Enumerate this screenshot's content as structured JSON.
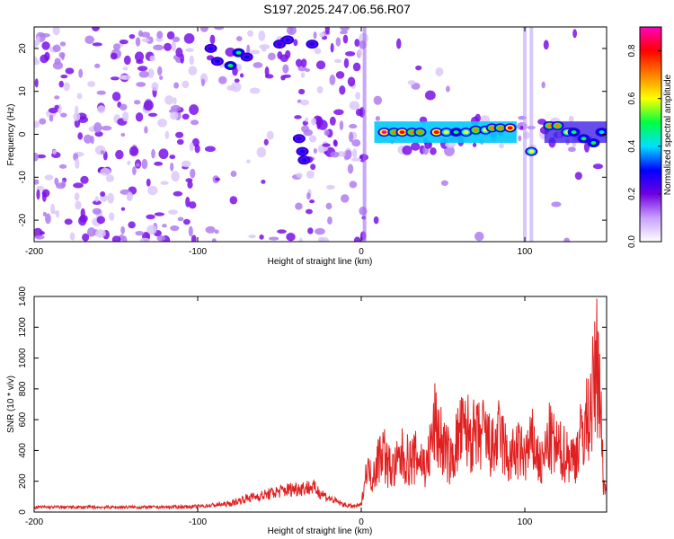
{
  "figure": {
    "title": "S197.2025.247.06.56.R07"
  },
  "chart_data": [
    {
      "type": "heatmap",
      "xlabel": "Height of straight line (km)",
      "ylabel": "Frequency (Hz)",
      "xlim": [
        -200,
        150
      ],
      "ylim": [
        -25,
        25
      ],
      "xticks": [
        -200,
        -100,
        0,
        100
      ],
      "yticks": [
        -20,
        -10,
        0,
        10,
        20
      ],
      "colorbar": {
        "label": "Normalized spectral amplitude",
        "range": [
          0.0,
          0.9
        ],
        "ticks": [
          "0.0",
          "0.2",
          "0.4",
          "0.6",
          "0.8"
        ],
        "colors": [
          "#ffffff",
          "#c8a0ff",
          "#7000e0",
          "#0000ff",
          "#00e0ff",
          "#00ff40",
          "#ffff00",
          "#ff8000",
          "#ff0000",
          "#ff00c0"
        ]
      },
      "features": [
        {
          "x": -75,
          "y": 19,
          "v": 0.45
        },
        {
          "x": -80,
          "y": 16,
          "v": 0.5
        },
        {
          "x": -92,
          "y": 20,
          "v": 0.35
        },
        {
          "x": -88,
          "y": 17,
          "v": 0.3
        },
        {
          "x": -50,
          "y": 21,
          "v": 0.35
        },
        {
          "x": -45,
          "y": 22,
          "v": 0.3
        },
        {
          "x": -30,
          "y": 21,
          "v": 0.3
        },
        {
          "x": -70,
          "y": 18,
          "v": 0.3
        },
        {
          "x": -38,
          "y": -1,
          "v": 0.3
        },
        {
          "x": -36,
          "y": -4,
          "v": 0.3
        },
        {
          "x": -35,
          "y": -6,
          "v": 0.35
        },
        {
          "x": 14,
          "y": 0.5,
          "v": 0.85
        },
        {
          "x": 20,
          "y": 0.5,
          "v": 0.7
        },
        {
          "x": 25,
          "y": 0.5,
          "v": 0.8
        },
        {
          "x": 31,
          "y": 0.5,
          "v": 0.75
        },
        {
          "x": 36,
          "y": 0.5,
          "v": 0.75
        },
        {
          "x": 46,
          "y": 0.5,
          "v": 0.8
        },
        {
          "x": 52,
          "y": 0.5,
          "v": 0.6
        },
        {
          "x": 58,
          "y": 0.5,
          "v": 0.5
        },
        {
          "x": 64,
          "y": 0.5,
          "v": 0.6
        },
        {
          "x": 70,
          "y": 1,
          "v": 0.75
        },
        {
          "x": 76,
          "y": 1,
          "v": 0.55
        },
        {
          "x": 80,
          "y": 1.5,
          "v": 0.75
        },
        {
          "x": 85,
          "y": 1.5,
          "v": 0.65
        },
        {
          "x": 91,
          "y": 1.5,
          "v": 0.8
        },
        {
          "x": 104,
          "y": -4,
          "v": 0.6
        },
        {
          "x": 115,
          "y": 2,
          "v": 0.7
        },
        {
          "x": 120,
          "y": 2,
          "v": 0.75
        },
        {
          "x": 126,
          "y": 0.5,
          "v": 0.6
        },
        {
          "x": 130,
          "y": 0.5,
          "v": 0.5
        },
        {
          "x": 136,
          "y": -1,
          "v": 0.45
        },
        {
          "x": 142,
          "y": -2,
          "v": 0.45
        },
        {
          "x": 147,
          "y": 0.5,
          "v": 0.4
        }
      ]
    },
    {
      "type": "line",
      "xlabel": "Height of straight line (km)",
      "ylabel": "SNR (10 * v/v)",
      "xlim": [
        -200,
        150
      ],
      "ylim": [
        0,
        1400
      ],
      "xticks": [
        -200,
        -100,
        0,
        100
      ],
      "yticks": [
        0,
        200,
        400,
        600,
        800,
        1000,
        1200,
        1400
      ],
      "color": "#e02020",
      "x": [
        -200,
        -180,
        -160,
        -140,
        -120,
        -100,
        -80,
        -70,
        -60,
        -50,
        -40,
        -30,
        -20,
        -10,
        -5,
        0,
        3,
        6,
        10,
        13,
        16,
        20,
        25,
        30,
        35,
        40,
        45,
        50,
        55,
        60,
        65,
        70,
        75,
        80,
        85,
        90,
        95,
        100,
        105,
        110,
        115,
        120,
        125,
        130,
        135,
        140,
        145,
        148,
        150
      ],
      "y": [
        35,
        35,
        35,
        35,
        35,
        40,
        60,
        100,
        120,
        150,
        170,
        180,
        100,
        50,
        40,
        50,
        300,
        320,
        450,
        600,
        420,
        380,
        500,
        450,
        500,
        400,
        780,
        600,
        450,
        700,
        720,
        650,
        700,
        550,
        700,
        450,
        550,
        500,
        620,
        400,
        650,
        550,
        520,
        480,
        700,
        900,
        1400,
        300,
        150
      ]
    }
  ]
}
